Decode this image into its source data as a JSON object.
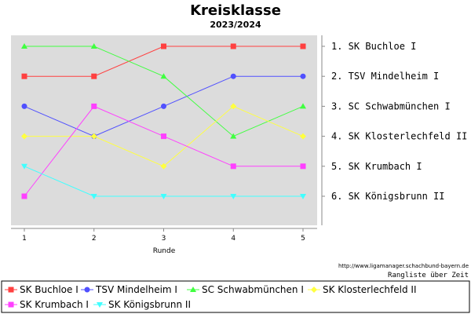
{
  "chart_data": {
    "type": "line",
    "title": "Kreisklasse",
    "subtitle": "2023/2024",
    "xlabel": "Runde",
    "x": [
      1,
      2,
      3,
      4,
      5
    ],
    "xlim": [
      1,
      5
    ],
    "ylim": [
      1,
      6
    ],
    "y_inverted": true,
    "grid": false,
    "series": [
      {
        "name": "SK Buchloe I",
        "values": [
          2,
          2,
          1,
          1,
          1
        ],
        "color": "#ff4040",
        "marker": "square"
      },
      {
        "name": "TSV Mindelheim I",
        "values": [
          3,
          4,
          3,
          2,
          2
        ],
        "color": "#5050ff",
        "marker": "circle"
      },
      {
        "name": "SC Schwabmünchen I",
        "values": [
          1,
          1,
          2,
          4,
          3
        ],
        "color": "#40ff40",
        "marker": "triangle-up"
      },
      {
        "name": "SK Klosterlechfeld II",
        "values": [
          4,
          4,
          5,
          3,
          4
        ],
        "color": "#ffff40",
        "marker": "diamond"
      },
      {
        "name": "SK Krumbach I",
        "values": [
          6,
          3,
          4,
          5,
          5
        ],
        "color": "#ff40ff",
        "marker": "square"
      },
      {
        "name": "SK Königsbrunn II",
        "values": [
          5,
          6,
          6,
          6,
          6
        ],
        "color": "#40ffff",
        "marker": "triangle-down"
      }
    ],
    "final_ranking": [
      "1. SK Buchloe I",
      "2. TSV Mindelheim I",
      "3. SC Schwabmünchen I",
      "4. SK Klosterlechfeld II",
      "5. SK Krumbach I",
      "6. SK Königsbrunn II"
    ],
    "source_note": "http://www.ligamanager.schachbund-bayern.de",
    "source_note_2": "Rangliste über Zeit",
    "legend_position": "bottom"
  }
}
